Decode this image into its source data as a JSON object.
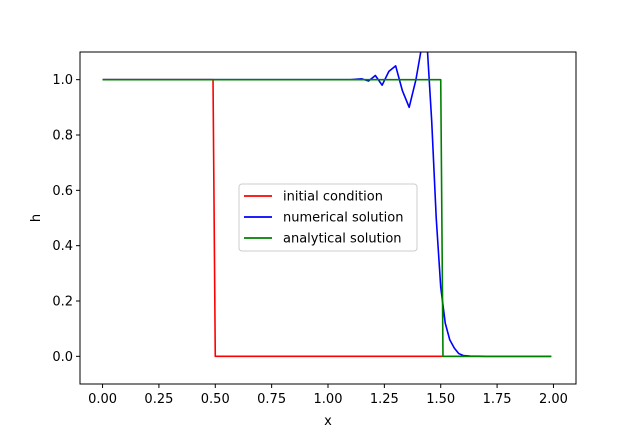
{
  "chart_data": {
    "type": "line",
    "title": "",
    "xlabel": "x",
    "ylabel": "h",
    "xlim": [
      -0.1,
      2.1
    ],
    "ylim": [
      -0.1,
      1.1
    ],
    "xticks": [
      "0.00",
      "0.25",
      "0.50",
      "0.75",
      "1.00",
      "1.25",
      "1.50",
      "1.75",
      "2.00"
    ],
    "yticks": [
      "0.0",
      "0.2",
      "0.4",
      "0.6",
      "0.8",
      "1.0"
    ],
    "grid": false,
    "legend_position": "center",
    "series": [
      {
        "name": "initial condition",
        "color": "#ff0000",
        "x": [
          0.0,
          0.49,
          0.5,
          1.99
        ],
        "y": [
          1.0,
          1.0,
          0.0,
          0.0
        ]
      },
      {
        "name": "numerical solution",
        "color": "#0000ff",
        "x": [
          0.0,
          1.1,
          1.15,
          1.18,
          1.21,
          1.24,
          1.27,
          1.3,
          1.33,
          1.36,
          1.39,
          1.42,
          1.44,
          1.46,
          1.48,
          1.5,
          1.52,
          1.54,
          1.56,
          1.58,
          1.6,
          1.63,
          1.7,
          1.99
        ],
        "y": [
          1.0,
          1.0,
          1.003,
          0.995,
          1.015,
          0.98,
          1.03,
          1.05,
          0.96,
          0.9,
          1.0,
          1.14,
          1.12,
          0.85,
          0.5,
          0.25,
          0.12,
          0.06,
          0.03,
          0.01,
          0.003,
          0.001,
          0.0,
          0.0
        ]
      },
      {
        "name": "analytical solution",
        "color": "#008000",
        "x": [
          0.0,
          1.5,
          1.51,
          1.99
        ],
        "y": [
          1.0,
          1.0,
          0.0,
          0.0
        ]
      }
    ]
  }
}
